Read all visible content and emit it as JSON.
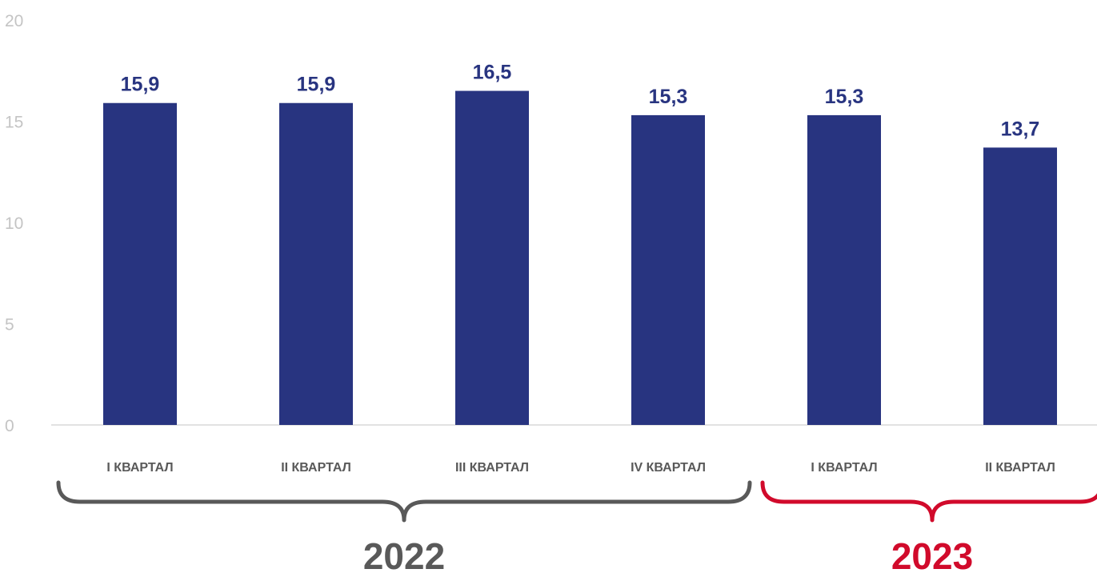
{
  "chart_data": {
    "type": "bar",
    "categories": [
      "I КВАРТАЛ",
      "II КВАРТАЛ",
      "III КВАРТАЛ",
      "IV КВАРТАЛ",
      "I КВАРТАЛ",
      "II КВАРТАЛ"
    ],
    "values": [
      15.9,
      15.9,
      16.5,
      15.3,
      15.3,
      13.7
    ],
    "value_labels": [
      "15,9",
      "15,9",
      "16,5",
      "15,3",
      "15,3",
      "13,7"
    ],
    "y_ticks": [
      "0",
      "5",
      "10",
      "15",
      "20"
    ],
    "ylim": [
      0,
      20
    ],
    "title": "",
    "xlabel": "",
    "ylabel": "",
    "grid": false,
    "groups": [
      {
        "label": "2022",
        "from": 0,
        "to": 3,
        "color": "#595959"
      },
      {
        "label": "2023",
        "from": 4,
        "to": 5,
        "color": "#d10a2b"
      }
    ],
    "bar_color": "#283480",
    "value_label_color": "#283480"
  }
}
